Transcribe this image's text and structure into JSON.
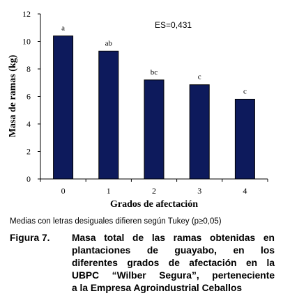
{
  "chart_data": {
    "type": "bar",
    "categories": [
      "0",
      "1",
      "2",
      "3",
      "4"
    ],
    "values": [
      10.4,
      9.3,
      7.2,
      6.85,
      5.8
    ],
    "letters": [
      "a",
      "ab",
      "bc",
      "c",
      "c"
    ],
    "title": "",
    "xlabel": "Grados de afectación",
    "ylabel": "Masa de ramas (kg)",
    "ylim": [
      0,
      12
    ],
    "yticks": [
      "0",
      "2",
      "4",
      "6",
      "8",
      "10",
      "12"
    ],
    "annotation": "ES=0,431",
    "bar_color": "#0d1a5c",
    "grid": false,
    "legend": "none"
  },
  "note": "Medias con letras desiguales difieren según Tukey (p≥0,05)",
  "caption": {
    "label": "Figura 7.",
    "lines": [
      "Masa total de las ramas obtenidas en",
      "plantaciones de guayabo, en los",
      "diferentes grados de afectación en la",
      "UBPC “Wilber Segura”, perteneciente",
      "a la Empresa Agroindustrial Ceballos"
    ]
  }
}
